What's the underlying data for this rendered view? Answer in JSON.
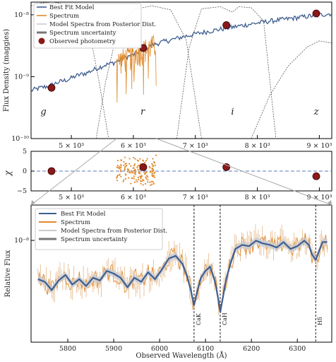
{
  "chart_data": [
    {
      "type": "line",
      "panel": "sed",
      "ylabel": "Flux Density (maggies)",
      "xlim": [
        4350,
        9200
      ],
      "ylim": [
        1e-10,
        1.6e-08
      ],
      "yscale": "log",
      "xticks": [
        {
          "value": 5000,
          "label": "5 × 10³"
        },
        {
          "value": 6000,
          "label": "6 × 10³"
        },
        {
          "value": 7000,
          "label": "7 × 10³"
        },
        {
          "value": 8000,
          "label": "8 × 10³"
        },
        {
          "value": 9000,
          "label": "9 × 10³"
        }
      ],
      "yticks": [
        {
          "value": 1e-08,
          "label": "10⁻⁸"
        },
        {
          "value": 1e-09,
          "label": "10⁻⁹"
        },
        {
          "value": 1e-10,
          "label": "10⁻¹⁰"
        }
      ],
      "legend": {
        "position": "top-left",
        "entries": [
          "Best Fit Model",
          "Spectrum",
          "Model Spectra from Posterior Dist.",
          "Spectrum uncertainty",
          "Observed photometry"
        ]
      },
      "band_labels": [
        {
          "text": "g",
          "x": 4550
        },
        {
          "text": "r",
          "x": 6150
        },
        {
          "text": "i",
          "x": 7600
        },
        {
          "text": "z",
          "x": 8950
        }
      ],
      "photometry": [
        {
          "x": 4680,
          "y": 6.6e-10
        },
        {
          "x": 6160,
          "y": 2.9e-09
        },
        {
          "x": 7500,
          "y": 6.8e-09
        },
        {
          "x": 8950,
          "y": 1.05e-08
        }
      ],
      "best_fit_model": {
        "x": [
          4350,
          4500,
          4650,
          4800,
          4950,
          5100,
          5250,
          5400,
          5550,
          5700,
          5850,
          6000,
          6150,
          6300,
          6450,
          6600,
          6800,
          7000,
          7300,
          7600,
          7900,
          8200,
          8500,
          8800,
          9100,
          9200
        ],
        "y": [
          6e-10,
          6.6e-10,
          7.1e-10,
          8.2e-10,
          9e-10,
          1.05e-09,
          1.15e-09,
          1.35e-09,
          1.55e-09,
          1.7e-09,
          2e-09,
          2.25e-09,
          2.7e-09,
          3.2e-09,
          3.6e-09,
          3.9e-09,
          4.4e-09,
          4.9e-09,
          5.6e-09,
          6.3e-09,
          7.1e-09,
          7.9e-09,
          8.6e-09,
          9.4e-09,
          1.02e-08,
          1.05e-08
        ]
      },
      "spectrum_range": [
        5730,
        6370
      ],
      "filter_curves": [
        {
          "name": "g",
          "x": [
            4350,
            4500,
            4700,
            4900,
            5100,
            5300,
            5450,
            5600
          ],
          "y": [
            1.4e-08,
            1.55e-08,
            1.6e-08,
            1.5e-08,
            1.1e-08,
            5e-09,
            8e-10,
            1e-10
          ]
        },
        {
          "name": "r",
          "x": [
            5400,
            5550,
            5750,
            6000,
            6300,
            6600,
            6850,
            7100
          ],
          "y": [
            1e-10,
            8e-10,
            6e-09,
            1.2e-08,
            1.4e-08,
            1.2e-08,
            4e-09,
            1e-10
          ]
        },
        {
          "name": "i",
          "x": [
            6700,
            6900,
            7100,
            7400,
            7600,
            7700,
            7900,
            8100,
            8300
          ],
          "y": [
            1e-10,
            3e-09,
            1.25e-08,
            1.35e-08,
            1.1e-08,
            1.35e-08,
            1.3e-08,
            8e-09,
            1e-10
          ]
        },
        {
          "name": "z",
          "x": [
            7900,
            8200,
            8500,
            8800,
            9000,
            9200
          ],
          "y": [
            1e-10,
            5e-10,
            1.5e-09,
            3e-09,
            3.8e-09,
            3.5e-09
          ]
        }
      ]
    },
    {
      "type": "scatter",
      "panel": "residuals",
      "ylabel": "χ",
      "xlim": [
        4350,
        9200
      ],
      "ylim": [
        -5,
        5
      ],
      "yticks": [
        {
          "value": 5,
          "label": "5"
        },
        {
          "value": 0,
          "label": "0"
        },
        {
          "value": -5,
          "label": "−5"
        }
      ],
      "xticks": [
        {
          "value": 5000,
          "label": "5 × 10³"
        },
        {
          "value": 6000,
          "label": "6 × 10³"
        },
        {
          "value": 7000,
          "label": "7 × 10³"
        },
        {
          "value": 8000,
          "label": "8 × 10³"
        },
        {
          "value": 9000,
          "label": "9 × 10³"
        }
      ],
      "photometry_residuals": [
        {
          "x": 4680,
          "y": 0.0
        },
        {
          "x": 6160,
          "y": 1.0
        },
        {
          "x": 7500,
          "y": 1.0
        },
        {
          "x": 8950,
          "y": -1.3
        }
      ],
      "spectrum_residual_range": [
        5730,
        6370
      ]
    },
    {
      "type": "line",
      "panel": "zoom",
      "xlabel": "Observed Wavelength (Å)",
      "ylabel": "Relative Flux",
      "xlim": [
        5720,
        6375
      ],
      "xticks": [
        {
          "value": 5800,
          "label": "5800"
        },
        {
          "value": 5900,
          "label": "5900"
        },
        {
          "value": 6000,
          "label": "6000"
        },
        {
          "value": 6100,
          "label": "6100"
        },
        {
          "value": 6200,
          "label": "6200"
        },
        {
          "value": 6300,
          "label": "6300"
        }
      ],
      "ytick": {
        "label": "10⁻⁸"
      },
      "legend": {
        "position": "top-left",
        "entries": [
          "Best Fit Model",
          "Spectrum",
          "Model Spectra from Posterior Dist.",
          "Spectrum uncertainty"
        ]
      },
      "lines": [
        {
          "label": "CaK",
          "x": 6075
        },
        {
          "label": "CaH",
          "x": 6132
        },
        {
          "label": "Hδ",
          "x": 6340
        }
      ],
      "model": {
        "x": [
          5735,
          5750,
          5765,
          5780,
          5795,
          5810,
          5825,
          5840,
          5855,
          5870,
          5885,
          5900,
          5915,
          5930,
          5945,
          5960,
          5975,
          5990,
          6005,
          6020,
          6035,
          6050,
          6060,
          6068,
          6075,
          6082,
          6090,
          6100,
          6110,
          6120,
          6127,
          6132,
          6138,
          6145,
          6155,
          6165,
          6180,
          6195,
          6210,
          6225,
          6240,
          6255,
          6270,
          6285,
          6300,
          6315,
          6325,
          6332,
          6340,
          6348,
          6355,
          6365
        ],
        "y": [
          0.46,
          0.44,
          0.38,
          0.45,
          0.49,
          0.42,
          0.46,
          0.41,
          0.47,
          0.45,
          0.52,
          0.5,
          0.47,
          0.4,
          0.47,
          0.44,
          0.51,
          0.46,
          0.53,
          0.61,
          0.63,
          0.57,
          0.48,
          0.38,
          0.27,
          0.37,
          0.47,
          0.52,
          0.55,
          0.45,
          0.33,
          0.22,
          0.33,
          0.46,
          0.58,
          0.68,
          0.71,
          0.7,
          0.74,
          0.72,
          0.71,
          0.69,
          0.73,
          0.68,
          0.7,
          0.74,
          0.71,
          0.64,
          0.6,
          0.67,
          0.73,
          0.73
        ]
      },
      "spectrum_noise_amplitude": 0.07
    }
  ]
}
